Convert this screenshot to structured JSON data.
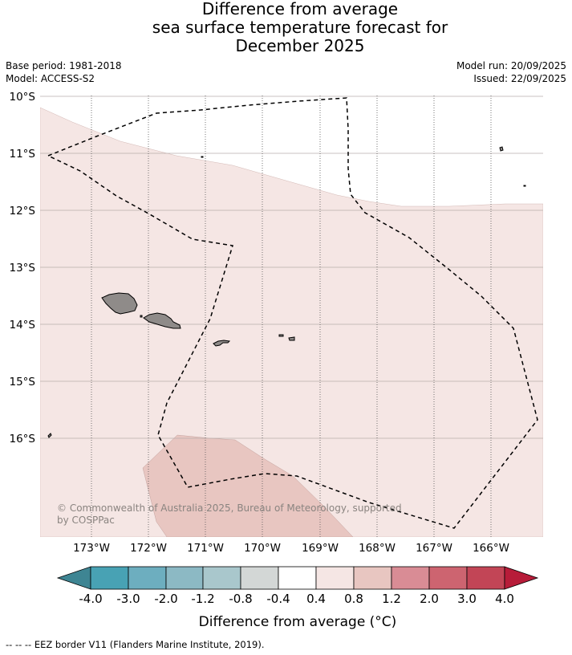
{
  "title": {
    "line1": "Difference from average",
    "line2": "sea surface temperature forecast for",
    "line3": "December 2025"
  },
  "meta": {
    "base_period": "Base period: 1981-2018",
    "model": "Model: ACCESS-S2",
    "model_run": "Model run: 20/09/2025",
    "issued": "Issued: 22/09/2025"
  },
  "map": {
    "lat_labels": [
      "10°S",
      "11°S",
      "12°S",
      "13°S",
      "14°S",
      "15°S",
      "16°S"
    ],
    "lon_labels": [
      "173°W",
      "172°W",
      "171°W",
      "170°W",
      "169°W",
      "168°W",
      "167°W",
      "166°W"
    ],
    "copyright": "© Commonwealth of Australia 2025, Bureau of Meteorology, supported by COSPPac",
    "colors": {
      "anomaly_0_4_0_8": "#f5e6e4",
      "anomaly_0_8_1_2": "#e8c6c1",
      "land": "#8f8b89",
      "eez_border": "#000000"
    }
  },
  "colorbar": {
    "ticks": [
      "-4.0",
      "-3.0",
      "-2.0",
      "-1.2",
      "-0.8",
      "-0.4",
      "0.4",
      "0.8",
      "1.2",
      "2.0",
      "3.0",
      "4.0"
    ],
    "colors": [
      "#3e8593",
      "#48a2b4",
      "#6daebf",
      "#8cb9c4",
      "#a9c7cc",
      "#d3d7d6",
      "#ffffff",
      "#f5e6e4",
      "#e8c6c1",
      "#d98c95",
      "#cd6470",
      "#c24556",
      "#b71c39"
    ],
    "title": "Difference from average (°C)"
  },
  "footnote": "--  --  -- EEZ border V11 (Flanders Marine Institute, 2019)."
}
